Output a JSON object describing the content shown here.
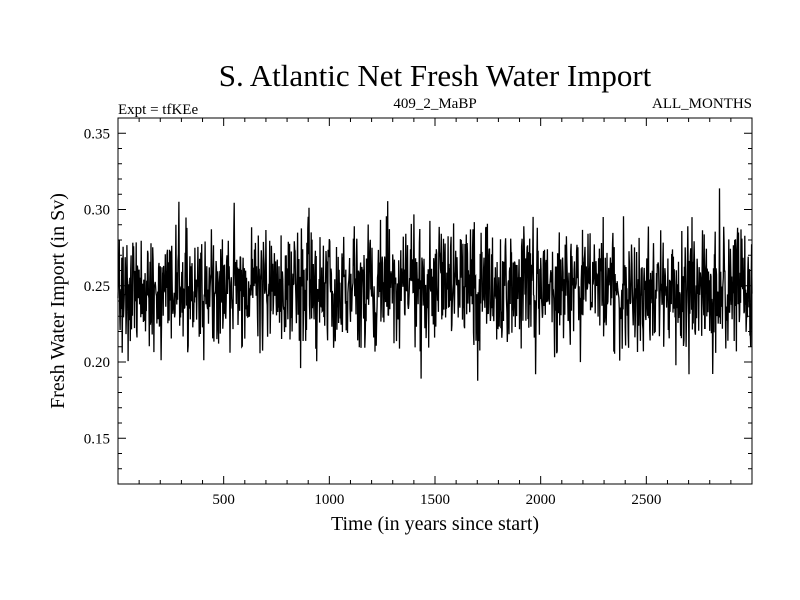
{
  "chart_data": {
    "type": "line",
    "title": "S. Atlantic Net Fresh Water Import",
    "subtitle_left": "Expt = tfKEe",
    "subtitle_center": "409_2_MaBP",
    "subtitle_right": "ALL_MONTHS",
    "xlabel": "Time (in years since start)",
    "ylabel": "Fresh Water Import (in Sv)",
    "xlim": [
      0,
      3000
    ],
    "ylim": [
      0.12,
      0.36
    ],
    "x_ticks": [
      500,
      1000,
      1500,
      2000,
      2500
    ],
    "y_ticks": [
      0.15,
      0.2,
      0.25,
      0.3,
      0.35
    ],
    "x_tick_labels": [
      "500",
      "1000",
      "1500",
      "2000",
      "2500"
    ],
    "y_tick_labels": [
      "0.15",
      "0.20",
      "0.25",
      "0.30",
      "0.35"
    ],
    "line_color": "#000000",
    "series": [
      {
        "x": [
          0,
          100,
          200,
          300,
          400,
          500,
          600,
          700,
          800,
          900,
          1000,
          1100,
          1200,
          1300,
          1400,
          1500,
          1600,
          1700,
          1800,
          1900,
          2000,
          2100,
          2200,
          2300,
          2400,
          2500,
          2600,
          2700,
          2800,
          2900,
          3000
        ],
        "values": [
          0.245,
          0.25,
          0.247,
          0.25,
          0.246,
          0.249,
          0.248,
          0.25,
          0.249,
          0.247,
          0.25,
          0.248,
          0.249,
          0.251,
          0.248,
          0.25,
          0.249,
          0.247,
          0.25,
          0.249,
          0.248,
          0.25,
          0.247,
          0.249,
          0.248,
          0.246,
          0.248,
          0.247,
          0.245,
          0.247,
          0.246
        ]
      }
    ]
  }
}
